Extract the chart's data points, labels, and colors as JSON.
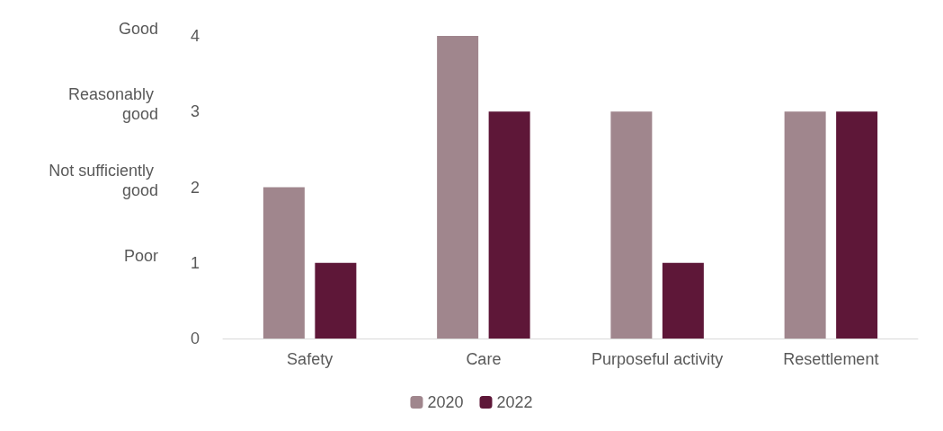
{
  "chart_data": {
    "type": "bar",
    "categories": [
      "Safety",
      "Care",
      "Purposeful activity",
      "Resettlement"
    ],
    "series": [
      {
        "name": "2020",
        "color": "#a0868d",
        "values": [
          2,
          4,
          3,
          3
        ]
      },
      {
        "name": "2022",
        "color": "#5e1738",
        "values": [
          1,
          3,
          1,
          3
        ]
      }
    ],
    "ylim": [
      0,
      4
    ],
    "yticks": [
      0,
      1,
      2,
      3,
      4
    ],
    "grid": false,
    "legend": "bottom",
    "annotations": [
      "Good",
      "Reasonably good",
      "Not sufficiently good",
      "Poor"
    ]
  }
}
